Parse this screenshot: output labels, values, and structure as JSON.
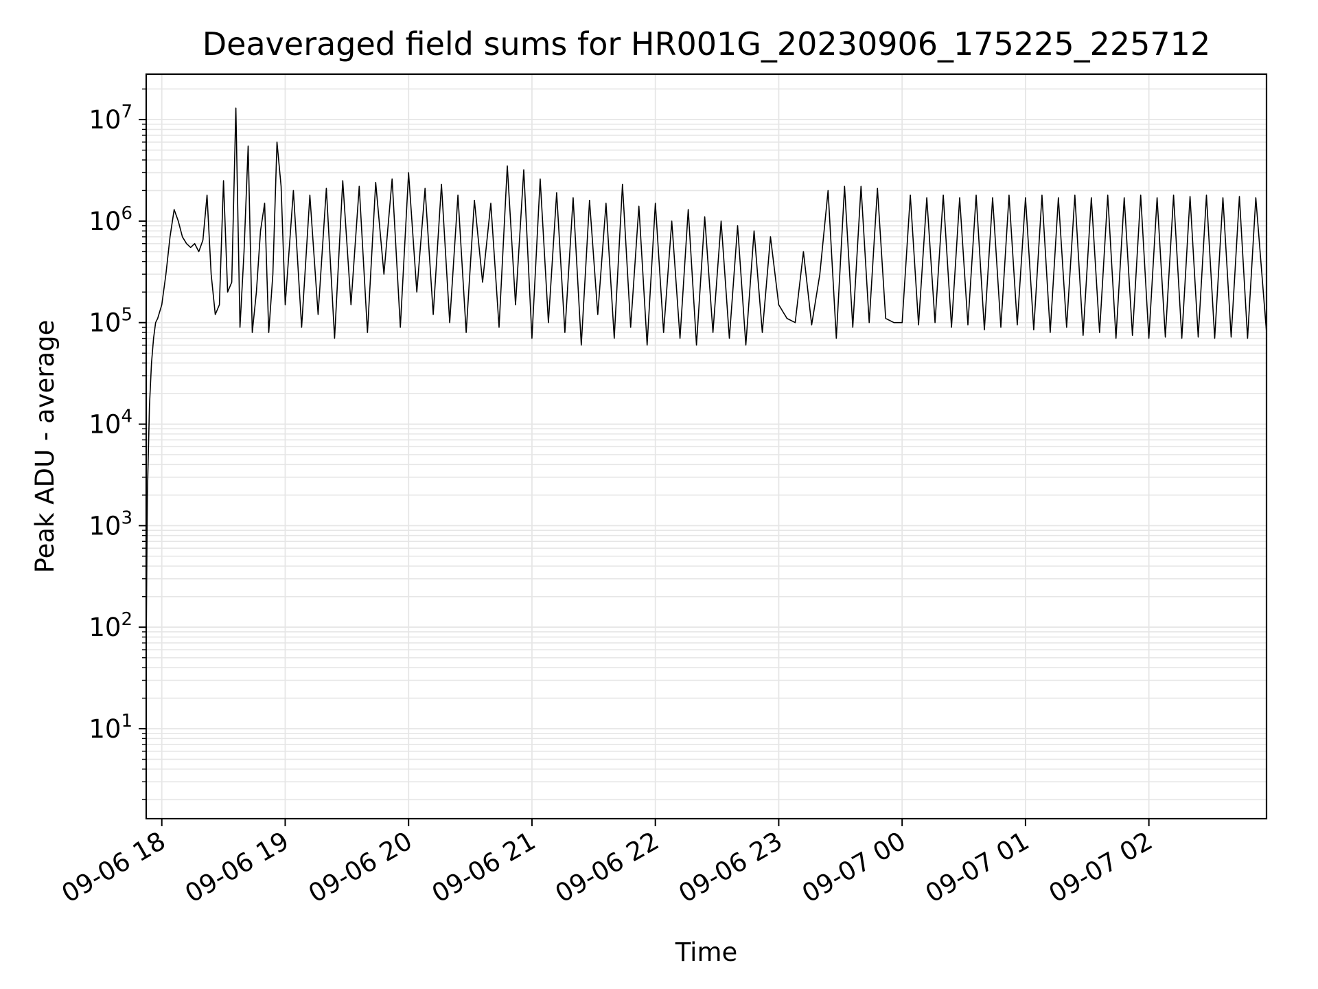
{
  "chart_data": {
    "type": "line",
    "title": "Deaveraged field sums for HR001G_20230906_175225_225712",
    "xlabel": "Time",
    "ylabel": "Peak ADU - average",
    "x_scale": "time",
    "y_scale": "log",
    "xlim": [
      "2023-09-06 17:52:25",
      "2023-09-07 02:57:12"
    ],
    "ylim": [
      1.3,
      28000000
    ],
    "grid": true,
    "grid_minor": true,
    "line_color": "#000000",
    "x_ticks": [
      {
        "value": "2023-09-06 18:00",
        "label": "09-06 18"
      },
      {
        "value": "2023-09-06 19:00",
        "label": "09-06 19"
      },
      {
        "value": "2023-09-06 20:00",
        "label": "09-06 20"
      },
      {
        "value": "2023-09-06 21:00",
        "label": "09-06 21"
      },
      {
        "value": "2023-09-06 22:00",
        "label": "09-06 22"
      },
      {
        "value": "2023-09-06 23:00",
        "label": "09-06 23"
      },
      {
        "value": "2023-09-07 00:00",
        "label": "09-07 00"
      },
      {
        "value": "2023-09-07 01:00",
        "label": "09-07 01"
      },
      {
        "value": "2023-09-07 02:00",
        "label": "09-07 02"
      }
    ],
    "y_ticks": [
      {
        "value": 10,
        "base": "10",
        "exp": "1"
      },
      {
        "value": 100,
        "base": "10",
        "exp": "2"
      },
      {
        "value": 1000,
        "base": "10",
        "exp": "3"
      },
      {
        "value": 10000,
        "base": "10",
        "exp": "4"
      },
      {
        "value": 100000,
        "base": "10",
        "exp": "5"
      },
      {
        "value": 1000000,
        "base": "10",
        "exp": "6"
      },
      {
        "value": 10000000,
        "base": "10",
        "exp": "7"
      }
    ],
    "series": [
      {
        "x": [
          "2023-09-06 17:52:25",
          "2023-09-06 17:53:00",
          "2023-09-06 17:54:00",
          "2023-09-06 17:55:00",
          "2023-09-06 17:56:00",
          "2023-09-06 17:57:00",
          "2023-09-06 17:58:00",
          "2023-09-06 18:00:00",
          "2023-09-06 18:02:00",
          "2023-09-06 18:04:00",
          "2023-09-06 18:06:00",
          "2023-09-06 18:08:00",
          "2023-09-06 18:10:00",
          "2023-09-06 18:12:00",
          "2023-09-06 18:14:00",
          "2023-09-06 18:16:00",
          "2023-09-06 18:18:00",
          "2023-09-06 18:20:00",
          "2023-09-06 18:22:00",
          "2023-09-06 18:24:00",
          "2023-09-06 18:26:00",
          "2023-09-06 18:28:00",
          "2023-09-06 18:30:00",
          "2023-09-06 18:32:00",
          "2023-09-06 18:34:00",
          "2023-09-06 18:36:00",
          "2023-09-06 18:38:00",
          "2023-09-06 18:40:00",
          "2023-09-06 18:42:00",
          "2023-09-06 18:44:00",
          "2023-09-06 18:46:00",
          "2023-09-06 18:48:00",
          "2023-09-06 18:50:00",
          "2023-09-06 18:52:00",
          "2023-09-06 18:54:00",
          "2023-09-06 18:56:00",
          "2023-09-06 18:58:00",
          "2023-09-06 19:00:00",
          "2023-09-06 19:04:00",
          "2023-09-06 19:08:00",
          "2023-09-06 19:12:00",
          "2023-09-06 19:16:00",
          "2023-09-06 19:20:00",
          "2023-09-06 19:24:00",
          "2023-09-06 19:28:00",
          "2023-09-06 19:32:00",
          "2023-09-06 19:36:00",
          "2023-09-06 19:40:00",
          "2023-09-06 19:44:00",
          "2023-09-06 19:48:00",
          "2023-09-06 19:52:00",
          "2023-09-06 19:56:00",
          "2023-09-06 20:00:00",
          "2023-09-06 20:04:00",
          "2023-09-06 20:08:00",
          "2023-09-06 20:12:00",
          "2023-09-06 20:16:00",
          "2023-09-06 20:20:00",
          "2023-09-06 20:24:00",
          "2023-09-06 20:28:00",
          "2023-09-06 20:32:00",
          "2023-09-06 20:36:00",
          "2023-09-06 20:40:00",
          "2023-09-06 20:44:00",
          "2023-09-06 20:48:00",
          "2023-09-06 20:52:00",
          "2023-09-06 20:56:00",
          "2023-09-06 21:00:00",
          "2023-09-06 21:04:00",
          "2023-09-06 21:08:00",
          "2023-09-06 21:12:00",
          "2023-09-06 21:16:00",
          "2023-09-06 21:20:00",
          "2023-09-06 21:24:00",
          "2023-09-06 21:28:00",
          "2023-09-06 21:32:00",
          "2023-09-06 21:36:00",
          "2023-09-06 21:40:00",
          "2023-09-06 21:44:00",
          "2023-09-06 21:48:00",
          "2023-09-06 21:52:00",
          "2023-09-06 21:56:00",
          "2023-09-06 22:00:00",
          "2023-09-06 22:04:00",
          "2023-09-06 22:08:00",
          "2023-09-06 22:12:00",
          "2023-09-06 22:16:00",
          "2023-09-06 22:20:00",
          "2023-09-06 22:24:00",
          "2023-09-06 22:28:00",
          "2023-09-06 22:32:00",
          "2023-09-06 22:36:00",
          "2023-09-06 22:40:00",
          "2023-09-06 22:44:00",
          "2023-09-06 22:48:00",
          "2023-09-06 22:52:00",
          "2023-09-06 22:56:00",
          "2023-09-06 23:00:00",
          "2023-09-06 23:04:00",
          "2023-09-06 23:08:00",
          "2023-09-06 23:12:00",
          "2023-09-06 23:16:00",
          "2023-09-06 23:20:00",
          "2023-09-06 23:24:00",
          "2023-09-06 23:28:00",
          "2023-09-06 23:32:00",
          "2023-09-06 23:36:00",
          "2023-09-06 23:40:00",
          "2023-09-06 23:44:00",
          "2023-09-06 23:48:00",
          "2023-09-06 23:52:00",
          "2023-09-06 23:56:00",
          "2023-09-07 00:00:00",
          "2023-09-07 00:04:00",
          "2023-09-07 00:08:00",
          "2023-09-07 00:12:00",
          "2023-09-07 00:16:00",
          "2023-09-07 00:20:00",
          "2023-09-07 00:24:00",
          "2023-09-07 00:28:00",
          "2023-09-07 00:32:00",
          "2023-09-07 00:36:00",
          "2023-09-07 00:40:00",
          "2023-09-07 00:44:00",
          "2023-09-07 00:48:00",
          "2023-09-07 00:52:00",
          "2023-09-07 00:56:00",
          "2023-09-07 01:00:00",
          "2023-09-07 01:04:00",
          "2023-09-07 01:08:00",
          "2023-09-07 01:12:00",
          "2023-09-07 01:16:00",
          "2023-09-07 01:20:00",
          "2023-09-07 01:24:00",
          "2023-09-07 01:28:00",
          "2023-09-07 01:32:00",
          "2023-09-07 01:36:00",
          "2023-09-07 01:40:00",
          "2023-09-07 01:44:00",
          "2023-09-07 01:48:00",
          "2023-09-07 01:52:00",
          "2023-09-07 01:56:00",
          "2023-09-07 02:00:00",
          "2023-09-07 02:04:00",
          "2023-09-07 02:08:00",
          "2023-09-07 02:12:00",
          "2023-09-07 02:16:00",
          "2023-09-07 02:20:00",
          "2023-09-07 02:24:00",
          "2023-09-07 02:28:00",
          "2023-09-07 02:32:00",
          "2023-09-07 02:36:00",
          "2023-09-07 02:40:00",
          "2023-09-07 02:44:00",
          "2023-09-07 02:48:00",
          "2023-09-07 02:52:00",
          "2023-09-07 02:57:12"
        ],
        "values": [
          80,
          2000,
          15000,
          40000,
          70000,
          100000,
          110000,
          150000,
          300000,
          700000,
          1300000,
          1000000,
          700000,
          600000,
          550000,
          600000,
          500000,
          650000,
          1800000,
          300000,
          120000,
          150000,
          2500000,
          200000,
          250000,
          13000000,
          90000,
          500000,
          5500000,
          80000,
          200000,
          800000,
          1500000,
          80000,
          300000,
          6000000,
          2200000,
          150000,
          2000000,
          90000,
          1800000,
          120000,
          2100000,
          70000,
          2500000,
          150000,
          2200000,
          80000,
          2400000,
          300000,
          2600000,
          90000,
          3000000,
          200000,
          2100000,
          120000,
          2300000,
          100000,
          1800000,
          80000,
          1600000,
          250000,
          1500000,
          90000,
          3500000,
          150000,
          3200000,
          70000,
          2600000,
          100000,
          1900000,
          80000,
          1700000,
          60000,
          1600000,
          120000,
          1500000,
          70000,
          2300000,
          90000,
          1400000,
          60000,
          1500000,
          80000,
          1000000,
          70000,
          1300000,
          60000,
          1100000,
          80000,
          1000000,
          70000,
          900000,
          60000,
          800000,
          80000,
          700000,
          150000,
          110000,
          100000,
          500000,
          95000,
          300000,
          2000000,
          70000,
          2200000,
          90000,
          2200000,
          100000,
          2100000,
          110000,
          100000,
          100000,
          1800000,
          95000,
          1700000,
          100000,
          1800000,
          90000,
          1700000,
          95000,
          1800000,
          85000,
          1700000,
          90000,
          1800000,
          95000,
          1700000,
          85000,
          1800000,
          80000,
          1700000,
          90000,
          1800000,
          75000,
          1700000,
          80000,
          1800000,
          70000,
          1700000,
          75000,
          1800000,
          70000,
          1700000,
          72000,
          1800000,
          70000,
          1750000,
          72000,
          1800000,
          70000,
          1700000,
          72000,
          1750000,
          70000,
          1700000,
          80000
        ]
      }
    ]
  }
}
